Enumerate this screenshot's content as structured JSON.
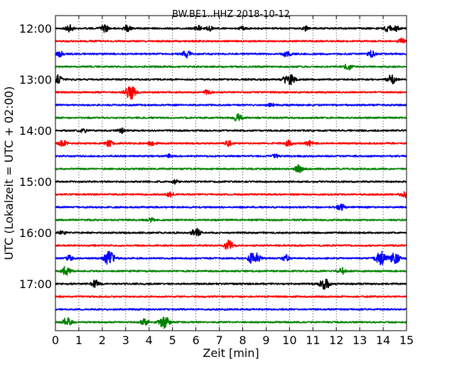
{
  "chart_data": {
    "type": "line",
    "title": "BW.BE1..HHZ 2018-10-12",
    "xlabel": "Zeit  [min]",
    "ylabel": "UTC (Lokalzeit = UTC + 02:00)",
    "xlim": [
      0,
      15
    ],
    "x_ticks": [
      "0",
      "1",
      "2",
      "3",
      "4",
      "5",
      "6",
      "7",
      "8",
      "9",
      "10",
      "11",
      "12",
      "13",
      "14",
      "15"
    ],
    "y_ticks": [
      "12:00",
      "13:00",
      "14:00",
      "15:00",
      "16:00",
      "17:00"
    ],
    "grid": "vertical dotted",
    "colors": [
      "#000000",
      "#ff0000",
      "#0000ff",
      "#008000"
    ],
    "series": [
      {
        "start": "12:00",
        "color": "#000000",
        "events": [
          [
            0.6,
            0.35
          ],
          [
            2.1,
            0.35
          ],
          [
            3.05,
            0.3
          ],
          [
            6.1,
            0.25
          ],
          [
            6.6,
            0.2
          ],
          [
            8.0,
            0.2
          ],
          [
            10.7,
            0.2
          ],
          [
            14.2,
            0.3
          ],
          [
            14.55,
            0.25
          ]
        ]
      },
      {
        "start": "12:15",
        "color": "#ff0000",
        "events": [
          [
            14.8,
            0.25
          ]
        ]
      },
      {
        "start": "12:30",
        "color": "#0000ff",
        "events": [
          [
            0.2,
            0.25
          ],
          [
            5.6,
            0.35
          ],
          [
            9.9,
            0.3
          ],
          [
            13.5,
            0.3
          ]
        ]
      },
      {
        "start": "12:45",
        "color": "#008000",
        "events": [
          [
            12.5,
            0.3
          ]
        ]
      },
      {
        "start": "13:00",
        "color": "#000000",
        "events": [
          [
            0.1,
            0.4
          ],
          [
            9.8,
            0.25
          ],
          [
            10.05,
            0.45
          ],
          [
            14.35,
            0.45
          ]
        ]
      },
      {
        "start": "13:15",
        "color": "#ff0000",
        "events": [
          [
            3.2,
            0.7
          ],
          [
            6.5,
            0.25
          ]
        ]
      },
      {
        "start": "13:30",
        "color": "#0000ff",
        "events": [
          [
            9.2,
            0.2
          ]
        ]
      },
      {
        "start": "13:45",
        "color": "#008000",
        "events": [
          [
            7.8,
            0.35
          ]
        ]
      },
      {
        "start": "14:00",
        "color": "#000000",
        "events": [
          [
            1.2,
            0.2
          ],
          [
            2.8,
            0.25
          ]
        ]
      },
      {
        "start": "14:15",
        "color": "#ff0000",
        "events": [
          [
            0.3,
            0.35
          ],
          [
            2.3,
            0.3
          ],
          [
            4.1,
            0.25
          ],
          [
            7.4,
            0.25
          ],
          [
            9.95,
            0.3
          ],
          [
            10.85,
            0.3
          ]
        ]
      },
      {
        "start": "14:30",
        "color": "#0000ff",
        "events": [
          [
            4.9,
            0.2
          ],
          [
            9.4,
            0.2
          ]
        ]
      },
      {
        "start": "14:45",
        "color": "#008000",
        "events": [
          [
            10.4,
            0.4
          ]
        ]
      },
      {
        "start": "15:00",
        "color": "#000000",
        "events": [
          [
            5.1,
            0.2
          ]
        ]
      },
      {
        "start": "15:15",
        "color": "#ff0000",
        "events": [
          [
            4.9,
            0.25
          ],
          [
            14.9,
            0.35
          ]
        ]
      },
      {
        "start": "15:30",
        "color": "#0000ff",
        "events": [
          [
            12.2,
            0.4
          ]
        ]
      },
      {
        "start": "15:45",
        "color": "#008000",
        "events": [
          [
            4.1,
            0.2
          ]
        ]
      },
      {
        "start": "16:00",
        "color": "#000000",
        "events": [
          [
            0.3,
            0.2
          ],
          [
            6.0,
            0.45
          ]
        ]
      },
      {
        "start": "16:15",
        "color": "#ff0000",
        "events": [
          [
            7.4,
            0.5
          ]
        ]
      },
      {
        "start": "16:30",
        "color": "#0000ff",
        "events": [
          [
            0.6,
            0.25
          ],
          [
            2.3,
            0.65
          ],
          [
            8.5,
            0.75
          ],
          [
            9.85,
            0.3
          ],
          [
            13.9,
            0.7
          ],
          [
            14.5,
            0.55
          ]
        ]
      },
      {
        "start": "16:45",
        "color": "#008000",
        "events": [
          [
            0.45,
            0.45
          ],
          [
            12.2,
            0.4
          ]
        ]
      },
      {
        "start": "17:00",
        "color": "#000000",
        "events": [
          [
            1.7,
            0.35
          ],
          [
            11.5,
            0.6
          ]
        ]
      },
      {
        "start": "17:15",
        "color": "#ff0000",
        "events": []
      },
      {
        "start": "17:30",
        "color": "#0000ff",
        "events": []
      },
      {
        "start": "17:45",
        "color": "#008000",
        "events": [
          [
            0.5,
            0.45
          ],
          [
            3.8,
            0.3
          ],
          [
            4.65,
            0.6
          ]
        ]
      }
    ]
  }
}
